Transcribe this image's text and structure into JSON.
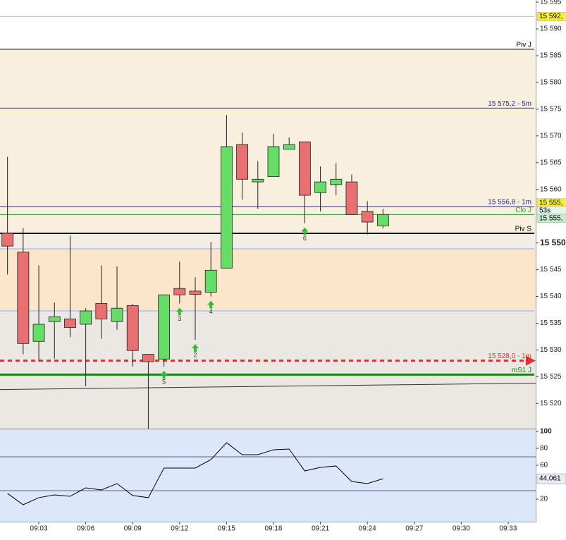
{
  "chart_data": [
    {
      "type": "candlestick",
      "x": [
        1,
        2,
        3,
        4,
        5,
        6,
        7,
        8,
        9,
        10,
        11,
        12,
        13,
        14,
        15,
        16,
        17,
        18,
        19,
        20,
        21,
        22,
        23,
        24,
        25
      ],
      "open": [
        15551.8,
        15548.3,
        15531.6,
        15535.3,
        15535.8,
        15534.8,
        15538.7,
        15535.3,
        15538.3,
        15529.2,
        15528.3,
        15541.5,
        15541.0,
        15540.8,
        15545.3,
        15568.4,
        15561.4,
        15562.4,
        15567.5,
        15568.9,
        15559.4,
        15560.9,
        15561.4,
        15555.9,
        15553.2
      ],
      "high": [
        15566.1,
        15552.8,
        15545.8,
        15538.9,
        15551.4,
        15537.8,
        15545.8,
        15545.6,
        15538.6,
        15529.2,
        15540.3,
        15546.5,
        15543.6,
        15550.2,
        15573.9,
        15570.6,
        15565.3,
        15570.4,
        15569.7,
        15568.9,
        15564.3,
        15564.9,
        15562.8,
        15557.8,
        15556.4
      ],
      "low": [
        15544.1,
        15529.2,
        15527.9,
        15528.4,
        15532.4,
        15523.2,
        15532.1,
        15533.8,
        15526.9,
        15515.3,
        15526.9,
        15538.7,
        15531.9,
        15540.0,
        15545.3,
        15558.1,
        15556.4,
        15562.4,
        15567.5,
        15553.7,
        15555.9,
        15558.9,
        15555.3,
        15551.6,
        15552.7
      ],
      "close": [
        15549.4,
        15531.2,
        15534.8,
        15536.2,
        15534.2,
        15537.3,
        15535.8,
        15537.8,
        15529.9,
        15527.8,
        15540.3,
        15540.3,
        15540.4,
        15544.9,
        15568.0,
        15561.9,
        15561.9,
        15568.0,
        15568.4,
        15558.9,
        15561.4,
        15561.9,
        15555.3,
        15553.9,
        15555.3
      ],
      "up_color": "#66dd66",
      "down_color": "#e87070",
      "xlim": [
        0.52,
        34.76
      ],
      "xticks": [
        {
          "value": 3,
          "label": "09:03"
        },
        {
          "value": 6,
          "label": "09:06"
        },
        {
          "value": 9,
          "label": "09:09"
        },
        {
          "value": 12,
          "label": "09:12"
        },
        {
          "value": 15,
          "label": "09:15"
        },
        {
          "value": 18,
          "label": "09:18"
        },
        {
          "value": 21,
          "label": "09:21"
        },
        {
          "value": 24,
          "label": "09:24"
        },
        {
          "value": 27,
          "label": "09:27"
        },
        {
          "value": 30,
          "label": "09:30"
        },
        {
          "value": 33,
          "label": "09:33"
        }
      ],
      "ylim": [
        15515.3,
        15595.4
      ],
      "yticks": [
        {
          "value": 15595,
          "label": "15 595"
        },
        {
          "value": 15590,
          "label": "15 590"
        },
        {
          "value": 15585,
          "label": "15 585"
        },
        {
          "value": 15580,
          "label": "15 580"
        },
        {
          "value": 15575,
          "label": "15 575"
        },
        {
          "value": 15570,
          "label": "15 570"
        },
        {
          "value": 15565,
          "label": "15 565"
        },
        {
          "value": 15560,
          "label": "15 560"
        },
        {
          "value": 15550,
          "label": "15 550"
        },
        {
          "value": 15545,
          "label": "15 545"
        },
        {
          "value": 15540,
          "label": "15 540"
        },
        {
          "value": 15535,
          "label": "15 535"
        },
        {
          "value": 15530,
          "label": "15 530"
        },
        {
          "value": 15525,
          "label": "15 525"
        },
        {
          "value": 15520,
          "label": "15 520"
        }
      ],
      "bold_ytick": 15550,
      "levels": [
        {
          "value": 15592.3,
          "color": "#e8b8b8"
        },
        {
          "value": 15586.2,
          "color": "#000000",
          "label": "Piv J"
        },
        {
          "value": 15575.2,
          "color": "#2a2a9a",
          "label": "15 575,2 - 5m"
        },
        {
          "value": 15556.8,
          "color": "#2a2a9a",
          "label": "15 556,8 - 1m"
        },
        {
          "value": 15555.3,
          "color": "#2e9a2e",
          "label": "Clo J"
        },
        {
          "value": 15551.8,
          "color": "#000000",
          "label": "Piv S",
          "width": 2
        },
        {
          "value": 15548.9,
          "color": "#8fb0e8"
        },
        {
          "value": 15537.3,
          "color": "#8fb0e8"
        },
        {
          "value": 15528.0,
          "color": "#e03030",
          "label": "15 528,0 - 1m",
          "width": 3,
          "dashed": true
        },
        {
          "value": 15525.4,
          "color": "#118811",
          "label": "mS1 J",
          "width": 3
        }
      ],
      "trendline": {
        "x": [
          0.52,
          34.76
        ],
        "values": [
          15522.6,
          15523.8
        ],
        "color": "#333333"
      },
      "price_tags": [
        {
          "value": 15592.3,
          "label": "15 592,",
          "color": "#ffee33"
        },
        {
          "value": 15555.9,
          "label": "15 555,",
          "color": "#ffee33"
        },
        {
          "label": "53s",
          "color": "#e8f4e8"
        },
        {
          "value": 15555.3,
          "label": "15 555,",
          "color": "#c8ecd0"
        }
      ],
      "annotations": [
        {
          "text": "5",
          "x": 11
        },
        {
          "text": "3",
          "x": 12
        },
        {
          "text": "2",
          "x": 13
        },
        {
          "text": "4",
          "x": 14
        },
        {
          "text": "6",
          "x": 20
        }
      ]
    },
    {
      "type": "line",
      "x": [
        1,
        2,
        3,
        4,
        5,
        6,
        7,
        8,
        9,
        10,
        11,
        12,
        13,
        14,
        15,
        16,
        17,
        18,
        19,
        20,
        21,
        22,
        23,
        24,
        25
      ],
      "values": [
        26.7,
        13.3,
        21.7,
        25,
        23.3,
        33.3,
        30.8,
        38.3,
        24.2,
        21.7,
        56.7,
        56.7,
        56.7,
        66.7,
        86.7,
        72.5,
        72.5,
        78.3,
        79.2,
        53.3,
        57.5,
        59.2,
        40.8,
        38.3,
        44.061
      ],
      "last_label": "44,061",
      "color": "#000000",
      "xlim": [
        0.52,
        34.76
      ],
      "ylim": [
        -6.7,
        102.5
      ],
      "yticks": [
        20,
        60,
        80,
        100
      ],
      "levels": [
        70,
        30
      ]
    }
  ]
}
